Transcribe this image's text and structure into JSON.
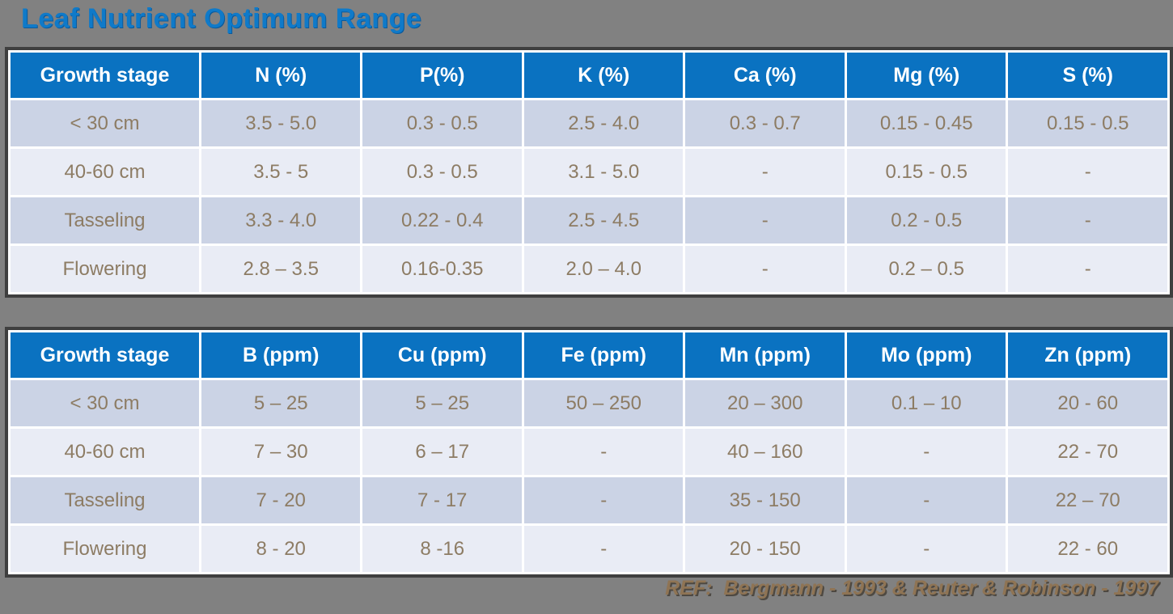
{
  "page": {
    "title": "Leaf Nutrient Optimum Range",
    "reference": "REF:  Bergmann - 1993 & Reuter & Robinson - 1997"
  },
  "colors": {
    "background": "#818181",
    "title_blue": "#0f7ac9",
    "header_blue": "#0a72c1",
    "row_dark": "#cbd3e5",
    "row_light": "#e9ecf5",
    "cell_text": "#8d7c64",
    "header_text": "#ffffff",
    "reference_text": "#8f7454",
    "table_border": "#3f3f3f"
  },
  "tables": [
    {
      "name": "macronutrients",
      "headers": [
        "Growth stage",
        "N (%)",
        "P(%)",
        "K (%)",
        "Ca (%)",
        "Mg (%)",
        "S (%)"
      ],
      "rows": [
        [
          "< 30 cm",
          "3.5 - 5.0",
          "0.3 - 0.5",
          "2.5 - 4.0",
          "0.3 - 0.7",
          "0.15 - 0.45",
          "0.15 - 0.5"
        ],
        [
          "40-60 cm",
          "3.5 - 5",
          "0.3 - 0.5",
          "3.1 - 5.0",
          "-",
          "0.15 - 0.5",
          "-"
        ],
        [
          "Tasseling",
          "3.3 - 4.0",
          "0.22 - 0.4",
          "2.5 - 4.5",
          "-",
          "0.2 - 0.5",
          "-"
        ],
        [
          "Flowering",
          "2.8 – 3.5",
          "0.16-0.35",
          "2.0 – 4.0",
          "-",
          "0.2 – 0.5",
          "-"
        ]
      ]
    },
    {
      "name": "micronutrients",
      "headers": [
        "Growth stage",
        "B (ppm)",
        "Cu (ppm)",
        "Fe (ppm)",
        "Mn (ppm)",
        "Mo (ppm)",
        "Zn (ppm)"
      ],
      "rows": [
        [
          "< 30 cm",
          "5 – 25",
          "5 – 25",
          "50 – 250",
          "20 – 300",
          "0.1 – 10",
          "20 - 60"
        ],
        [
          "40-60 cm",
          "7 – 30",
          "6 – 17",
          "-",
          "40 – 160",
          "-",
          "22 - 70"
        ],
        [
          "Tasseling",
          "7 - 20",
          "7 - 17",
          "-",
          "35 - 150",
          "-",
          "22 – 70"
        ],
        [
          "Flowering",
          "8 - 20",
          "8 -16",
          "-",
          "20 - 150",
          "-",
          "22 - 60"
        ]
      ]
    }
  ]
}
